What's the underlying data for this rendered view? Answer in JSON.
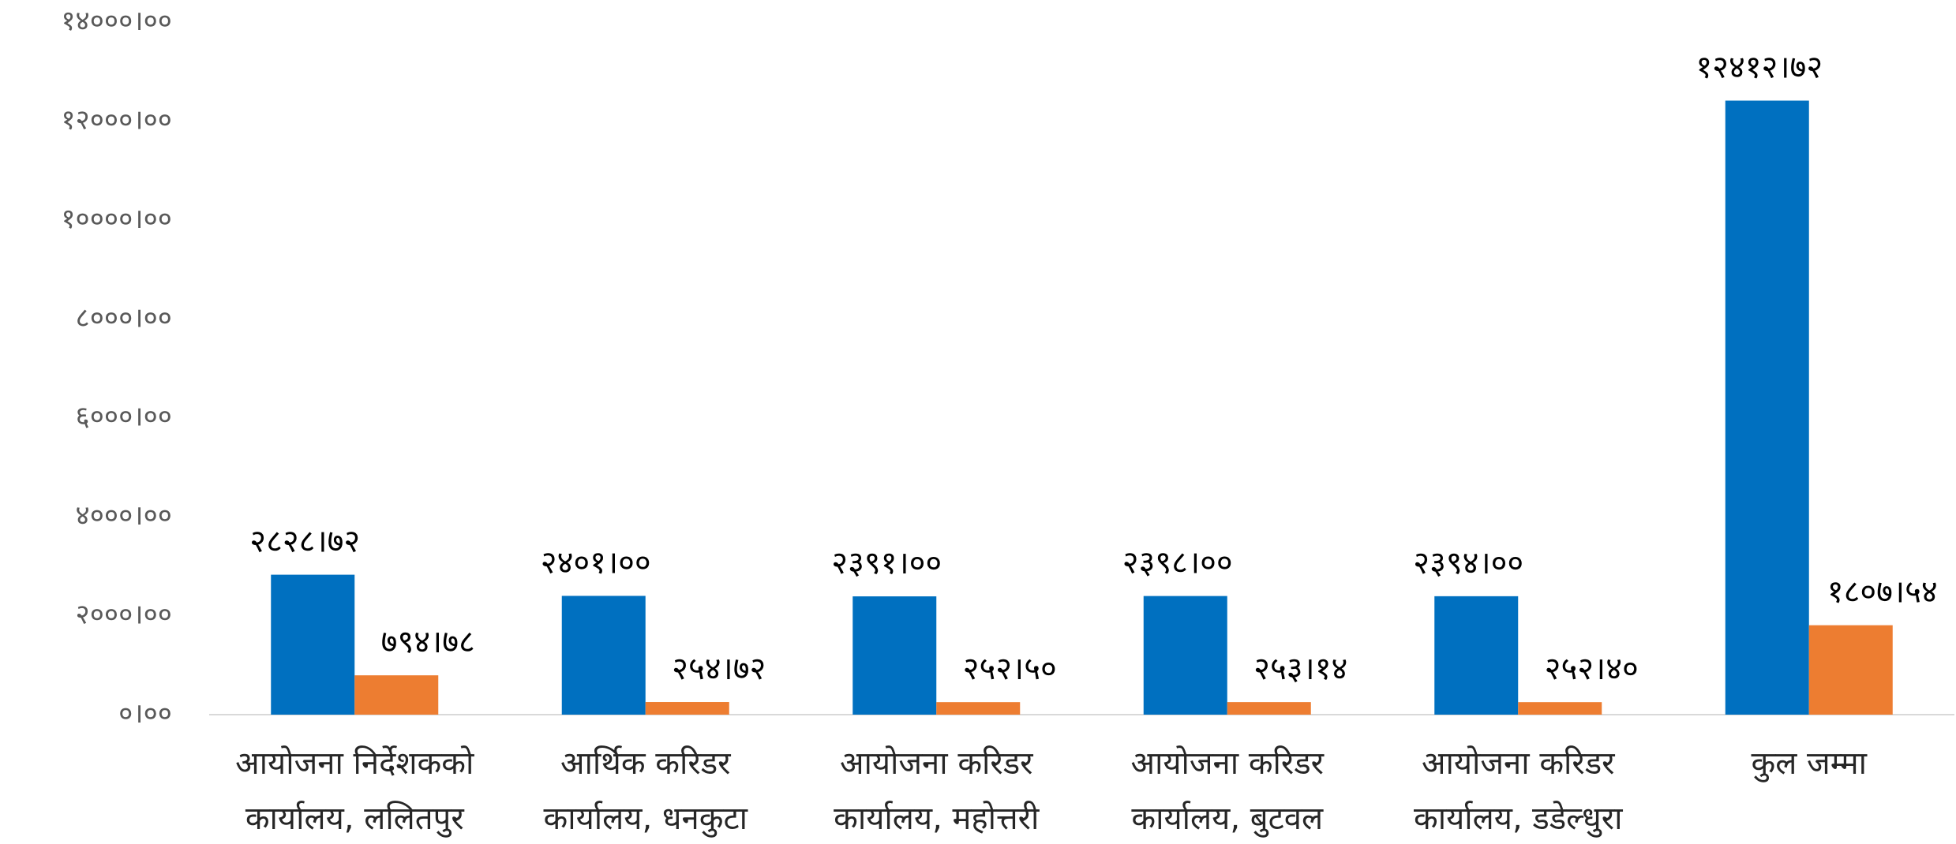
{
  "chart_data": {
    "type": "bar",
    "categories": [
      [
        "आयोजना निर्देशकको",
        "कार्यालय, ललितपुर"
      ],
      [
        "आर्थिक करिडर",
        "कार्यालय, धनकुटा"
      ],
      [
        "आयोजना करिडर",
        "कार्यालय, महोत्तरी"
      ],
      [
        "आयोजना करिडर",
        "कार्यालय, बुटवल"
      ],
      [
        "आयोजना करिडर",
        "कार्यालय, डडेल्धुरा"
      ],
      [
        "कुल जम्मा"
      ]
    ],
    "series": [
      {
        "color": "#0070c0",
        "values": [
          2828.72,
          2401.0,
          2391.0,
          2398.0,
          2394.0,
          12412.72
        ],
        "value_labels": [
          "२८२८।७२",
          "२४०१।००",
          "२३९१।००",
          "२३९८।००",
          "२३९४।००",
          "१२४१२।७२"
        ]
      },
      {
        "color": "#ed7d31",
        "values": [
          794.78,
          254.72,
          252.5,
          253.14,
          252.4,
          1807.54
        ],
        "value_labels": [
          "७९४।७८",
          "२५४।७२",
          "२५२।५०",
          "२५३।१४",
          "२५२।४०",
          "१८०७।५४"
        ]
      }
    ],
    "ylim": [
      0,
      14000
    ],
    "yticks": [
      {
        "value": 0,
        "label": "०।००"
      },
      {
        "value": 2000,
        "label": "२०००।००"
      },
      {
        "value": 4000,
        "label": "४०००।००"
      },
      {
        "value": 6000,
        "label": "६०००।००"
      },
      {
        "value": 8000,
        "label": "८०००।००"
      },
      {
        "value": 10000,
        "label": "१००००।००"
      },
      {
        "value": 12000,
        "label": "१२०००।००"
      },
      {
        "value": 14000,
        "label": "१४०००।००"
      }
    ],
    "grid": false
  }
}
